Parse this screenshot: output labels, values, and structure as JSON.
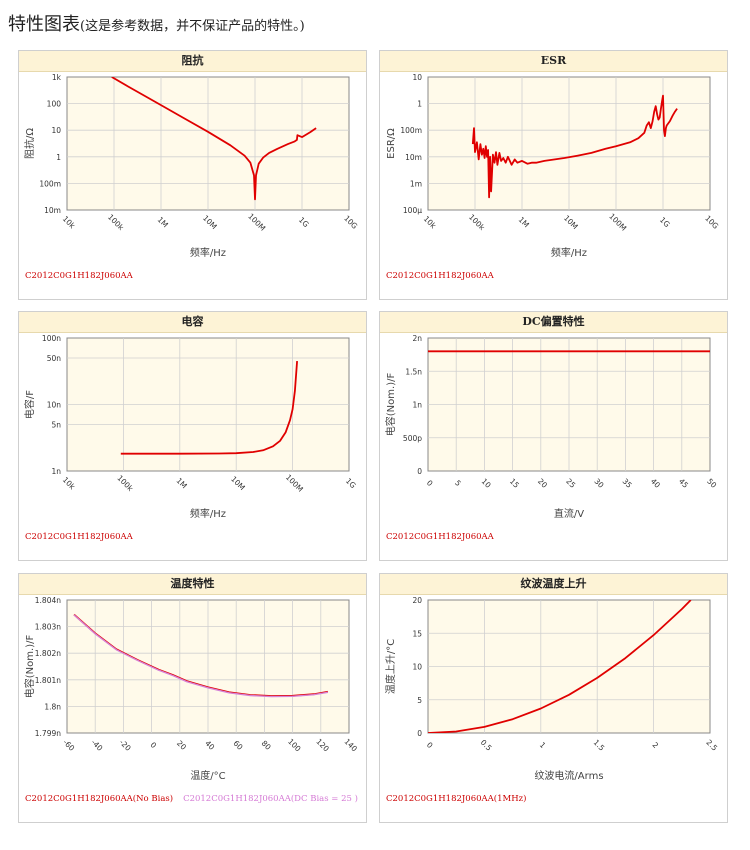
{
  "page": {
    "title": "特性图表",
    "subtitle": "(这是参考数据，并不保证产品的特性。)"
  },
  "colors": {
    "curve": "#e00000",
    "curve2": "#d683d6",
    "plot_bg": "#fffaea",
    "grid": "#d0d0d0",
    "header_bg": "#fdf3d6"
  },
  "chart_data": [
    {
      "id": "impedance",
      "type": "line",
      "title": "阻抗",
      "xlabel": "频率/Hz",
      "ylabel": "阻抗/Ω",
      "x_scale": "log",
      "y_scale": "log",
      "xlim": [
        10000,
        10000000000
      ],
      "ylim": [
        0.01,
        1000
      ],
      "x_ticks": [
        10000,
        100000,
        1000000,
        10000000,
        100000000,
        1000000000,
        10000000000
      ],
      "x_tick_labels": [
        "10k",
        "100k",
        "1M",
        "10M",
        "100M",
        "1G",
        "10G"
      ],
      "y_ticks": [
        0.01,
        0.1,
        1,
        10,
        100,
        1000
      ],
      "y_tick_labels": [
        "10m",
        "100m",
        "1",
        "10",
        "100",
        "1k"
      ],
      "grid": true,
      "legend": [
        "C2012C0G1H182J060AA"
      ],
      "series": [
        {
          "x": [
            90000,
            200000,
            500000,
            1000000,
            3000000,
            10000000,
            30000000,
            60000000,
            80000000,
            95000000,
            100000000,
            105000000,
            120000000,
            150000000,
            200000000,
            300000000,
            500000000,
            700000000,
            780000000,
            800000000,
            1000000000,
            1500000000,
            2000000000
          ],
          "y": [
            1000,
            440,
            175,
            88,
            29,
            8.7,
            2.7,
            1.1,
            0.6,
            0.2,
            0.025,
            0.2,
            0.55,
            0.95,
            1.4,
            2.0,
            3.0,
            3.8,
            4.3,
            6.5,
            5.5,
            8.5,
            12
          ]
        }
      ]
    },
    {
      "id": "esr",
      "type": "line",
      "title": "ESR",
      "xlabel": "频率/Hz",
      "ylabel": "ESR/Ω",
      "x_scale": "log",
      "y_scale": "log",
      "xlim": [
        10000,
        10000000000
      ],
      "ylim": [
        0.0001,
        10
      ],
      "x_ticks": [
        10000,
        100000,
        1000000,
        10000000,
        100000000,
        1000000000,
        10000000000
      ],
      "x_tick_labels": [
        "10k",
        "100k",
        "1M",
        "10M",
        "100M",
        "1G",
        "10G"
      ],
      "y_ticks": [
        0.0001,
        0.001,
        0.01,
        0.1,
        1,
        10
      ],
      "y_tick_labels": [
        "100μ",
        "1m",
        "10m",
        "100m",
        "1",
        "10"
      ],
      "grid": true,
      "legend": [
        "C2012C0G1H182J060AA"
      ],
      "series": [
        {
          "x": [
            90000,
            95000,
            100000,
            110000,
            120000,
            130000,
            140000,
            150000,
            160000,
            170000,
            180000,
            190000,
            200000,
            210000,
            220000,
            240000,
            260000,
            280000,
            300000,
            330000,
            360000,
            400000,
            450000,
            500000,
            600000,
            700000,
            800000,
            1000000,
            1300000,
            1600000,
            2000000,
            3000000,
            5000000,
            8000000,
            15000000,
            30000000,
            60000000,
            100000000,
            200000000,
            300000000,
            400000000,
            450000000,
            500000000,
            550000000,
            600000000,
            650000000,
            700000000,
            750000000,
            800000000,
            850000000,
            900000000,
            950000000,
            1000000000,
            1050000000,
            1100000000,
            1150000000,
            1200000000,
            1400000000,
            1600000000,
            1800000000,
            2000000000
          ],
          "y": [
            0.03,
            0.12,
            0.015,
            0.035,
            0.008,
            0.03,
            0.012,
            0.02,
            0.009,
            0.025,
            0.01,
            0.018,
            0.0003,
            0.01,
            0.0005,
            0.012,
            0.006,
            0.015,
            0.005,
            0.014,
            0.007,
            0.009,
            0.006,
            0.01,
            0.005,
            0.008,
            0.006,
            0.007,
            0.0055,
            0.006,
            0.006,
            0.007,
            0.008,
            0.009,
            0.011,
            0.014,
            0.02,
            0.025,
            0.035,
            0.05,
            0.08,
            0.15,
            0.2,
            0.12,
            0.22,
            0.5,
            0.8,
            0.4,
            0.25,
            0.3,
            0.6,
            1.2,
            2.0,
            0.1,
            0.06,
            0.12,
            0.15,
            0.22,
            0.35,
            0.5,
            0.65
          ]
        }
      ]
    },
    {
      "id": "capacitance",
      "type": "line",
      "title": "电容",
      "xlabel": "频率/Hz",
      "ylabel": "电容/F",
      "x_scale": "log",
      "y_scale": "log",
      "xlim": [
        10000,
        1000000000
      ],
      "ylim": [
        1e-09,
        1e-07
      ],
      "x_ticks": [
        10000,
        100000,
        1000000,
        10000000,
        100000000,
        1000000000
      ],
      "x_tick_labels": [
        "10k",
        "100k",
        "1M",
        "10M",
        "100M",
        "1G"
      ],
      "y_ticks": [
        1e-09,
        5e-09,
        1e-08,
        5e-08,
        1e-07
      ],
      "y_tick_labels": [
        "1n",
        "5n",
        "10n",
        "50n",
        "100n"
      ],
      "grid": true,
      "legend": [
        "C2012C0G1H182J060AA"
      ],
      "series": [
        {
          "x": [
            90000,
            1000000,
            5000000,
            10000000,
            20000000,
            30000000,
            45000000,
            60000000,
            75000000,
            90000000,
            100000000,
            110000000,
            120000000
          ],
          "y": [
            1.82e-09,
            1.82e-09,
            1.83e-09,
            1.85e-09,
            1.93e-09,
            2.05e-09,
            2.35e-09,
            2.85e-09,
            3.8e-09,
            5.8e-09,
            8.5e-09,
            1.6e-08,
            4.5e-08
          ]
        }
      ]
    },
    {
      "id": "dc-bias",
      "type": "line",
      "title": "DC偏置特性",
      "xlabel": "直流/V",
      "ylabel": "电容(Nom.)/F",
      "x_scale": "linear",
      "y_scale": "linear",
      "xlim": [
        0,
        50
      ],
      "ylim": [
        0,
        2e-09
      ],
      "x_ticks": [
        0,
        5,
        10,
        15,
        20,
        25,
        30,
        35,
        40,
        45,
        50
      ],
      "x_tick_labels": [
        "0",
        "5",
        "10",
        "15",
        "20",
        "25",
        "30",
        "35",
        "40",
        "45",
        "50"
      ],
      "y_ticks": [
        0,
        5e-10,
        1e-09,
        1.5e-09,
        2e-09
      ],
      "y_tick_labels": [
        "0",
        "500p",
        "1n",
        "1.5n",
        "2n"
      ],
      "grid": true,
      "legend": [
        "C2012C0G1H182J060AA"
      ],
      "series": [
        {
          "x": [
            0,
            50
          ],
          "y": [
            1.8e-09,
            1.8e-09
          ]
        }
      ]
    },
    {
      "id": "temperature",
      "type": "line",
      "title": "温度特性",
      "xlabel": "温度/°C",
      "ylabel": "电容(Nom.)/F",
      "x_scale": "linear",
      "y_scale": "linear",
      "xlim": [
        -60,
        140
      ],
      "ylim": [
        1.799e-09,
        1.804e-09
      ],
      "x_ticks": [
        -60,
        -40,
        -20,
        0,
        20,
        40,
        60,
        80,
        100,
        120,
        140
      ],
      "x_tick_labels": [
        "-60",
        "-40",
        "-20",
        "0",
        "20",
        "40",
        "60",
        "80",
        "100",
        "120",
        "140"
      ],
      "y_ticks": [
        1.799e-09,
        1.8e-09,
        1.801e-09,
        1.802e-09,
        1.803e-09,
        1.804e-09
      ],
      "y_tick_labels": [
        "1.799n",
        "1.8n",
        "1.801n",
        "1.802n",
        "1.803n",
        "1.804n"
      ],
      "grid": true,
      "legend": [
        "C2012C0G1H182J060AA(No Bias)",
        "C2012C0G1H182J060AA(DC Bias = 25 )"
      ],
      "series": [
        {
          "name": "C2012C0G1H182J060AA(No Bias)",
          "x": [
            -55,
            -40,
            -25,
            -10,
            5,
            15,
            25,
            40,
            55,
            70,
            85,
            100,
            115,
            125
          ],
          "y": [
            1.80345e-09,
            1.80275e-09,
            1.80215e-09,
            1.80175e-09,
            1.80138e-09,
            1.80118e-09,
            1.80095e-09,
            1.80072e-09,
            1.80053e-09,
            1.80043e-09,
            1.80039e-09,
            1.8004e-09,
            1.80046e-09,
            1.80055e-09
          ]
        },
        {
          "name": "C2012C0G1H182J060AA(DC Bias = 25 )",
          "x": [
            -55,
            -40,
            -25,
            -10,
            5,
            15,
            25,
            40,
            55,
            70,
            85,
            100,
            115,
            125
          ],
          "y": [
            1.80344e-09,
            1.80273e-09,
            1.80213e-09,
            1.80173e-09,
            1.80136e-09,
            1.80116e-09,
            1.80093e-09,
            1.8007e-09,
            1.80051e-09,
            1.80041e-09,
            1.80037e-09,
            1.80038e-09,
            1.80044e-09,
            1.80053e-09
          ]
        }
      ]
    },
    {
      "id": "ripple",
      "type": "line",
      "title": "纹波温度上升",
      "xlabel": "纹波电流/Arms",
      "ylabel": "温度上升/°C",
      "x_scale": "linear",
      "y_scale": "linear",
      "xlim": [
        0,
        2.5
      ],
      "ylim": [
        0,
        20
      ],
      "x_ticks": [
        0,
        0.5,
        1,
        1.5,
        2,
        2.5
      ],
      "x_tick_labels": [
        "0",
        "0.5",
        "1",
        "1.5",
        "2",
        "2.5"
      ],
      "y_ticks": [
        0,
        5,
        10,
        15,
        20
      ],
      "y_tick_labels": [
        "0",
        "5",
        "10",
        "15",
        "20"
      ],
      "grid": true,
      "legend": [
        "C2012C0G1H182J060AA(1MHz)"
      ],
      "series": [
        {
          "x": [
            0,
            0.25,
            0.5,
            0.75,
            1.0,
            1.25,
            1.5,
            1.75,
            2.0,
            2.25,
            2.33
          ],
          "y": [
            0,
            0.23,
            0.92,
            2.07,
            3.68,
            5.75,
            8.28,
            11.27,
            14.72,
            18.63,
            20
          ]
        }
      ]
    }
  ]
}
